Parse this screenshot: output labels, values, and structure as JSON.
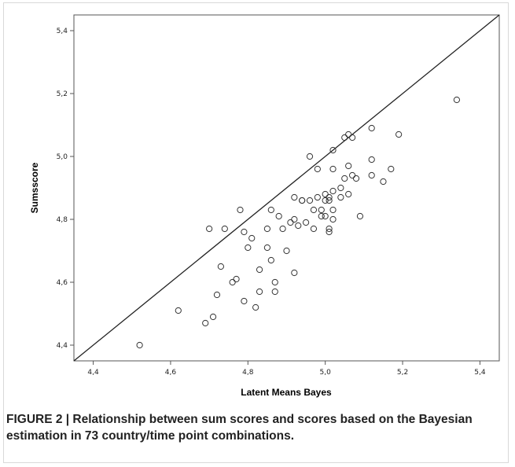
{
  "caption": "FIGURE 2 | Relationship between sum scores and scores based on the Bayesian estimation in 73 country/time point combinations.",
  "chart_data": {
    "type": "scatter",
    "title": "",
    "xlabel": "Latent Means Bayes",
    "ylabel": "Sumsscore",
    "xlim": [
      4.35,
      5.45
    ],
    "ylim": [
      4.35,
      5.45
    ],
    "xticks": [
      "4,4",
      "4,6",
      "4,8",
      "5,0",
      "5,2",
      "5,4"
    ],
    "yticks": [
      "4,4",
      "4,6",
      "4,8",
      "5,0",
      "5,2",
      "5,4"
    ],
    "tick_values": [
      4.4,
      4.6,
      4.8,
      5.0,
      5.2,
      5.4
    ],
    "grid": false,
    "reference_line": "y = x",
    "marker": "open circle",
    "colors": {
      "marker": "#333333",
      "line": "#222222",
      "frame": "#555555"
    },
    "points": [
      [
        4.52,
        4.4
      ],
      [
        4.62,
        4.51
      ],
      [
        4.69,
        4.47
      ],
      [
        4.71,
        4.49
      ],
      [
        4.72,
        4.56
      ],
      [
        4.73,
        4.65
      ],
      [
        4.7,
        4.77
      ],
      [
        4.74,
        4.77
      ],
      [
        4.76,
        4.6
      ],
      [
        4.77,
        4.61
      ],
      [
        4.78,
        4.83
      ],
      [
        4.79,
        4.76
      ],
      [
        4.8,
        4.71
      ],
      [
        4.81,
        4.74
      ],
      [
        4.79,
        4.54
      ],
      [
        4.82,
        4.52
      ],
      [
        4.83,
        4.57
      ],
      [
        4.83,
        4.64
      ],
      [
        4.85,
        4.77
      ],
      [
        4.85,
        4.71
      ],
      [
        4.86,
        4.67
      ],
      [
        4.86,
        4.83
      ],
      [
        4.87,
        4.6
      ],
      [
        4.87,
        4.57
      ],
      [
        4.88,
        4.81
      ],
      [
        4.89,
        4.77
      ],
      [
        4.9,
        4.7
      ],
      [
        4.91,
        4.79
      ],
      [
        4.92,
        4.63
      ],
      [
        4.92,
        4.8
      ],
      [
        4.92,
        4.87
      ],
      [
        4.93,
        4.78
      ],
      [
        4.94,
        4.86
      ],
      [
        4.95,
        4.79
      ],
      [
        4.96,
        5.0
      ],
      [
        4.96,
        4.86
      ],
      [
        4.97,
        4.77
      ],
      [
        4.97,
        4.83
      ],
      [
        4.98,
        4.87
      ],
      [
        4.98,
        4.96
      ],
      [
        4.99,
        4.81
      ],
      [
        4.99,
        4.83
      ],
      [
        5.0,
        4.88
      ],
      [
        5.0,
        4.81
      ],
      [
        5.01,
        4.86
      ],
      [
        5.01,
        4.87
      ],
      [
        5.01,
        4.76
      ],
      [
        5.02,
        4.83
      ],
      [
        5.02,
        4.8
      ],
      [
        5.02,
        4.89
      ],
      [
        5.02,
        4.96
      ],
      [
        5.02,
        5.02
      ],
      [
        5.04,
        4.87
      ],
      [
        5.04,
        4.9
      ],
      [
        5.05,
        4.93
      ],
      [
        5.05,
        5.06
      ],
      [
        5.06,
        4.88
      ],
      [
        5.06,
        5.07
      ],
      [
        5.06,
        4.97
      ],
      [
        5.07,
        4.94
      ],
      [
        5.07,
        5.06
      ],
      [
        5.08,
        4.93
      ],
      [
        5.09,
        4.81
      ],
      [
        5.12,
        4.94
      ],
      [
        5.12,
        4.99
      ],
      [
        5.12,
        5.09
      ],
      [
        5.15,
        4.92
      ],
      [
        5.17,
        4.96
      ],
      [
        5.19,
        5.07
      ],
      [
        5.34,
        5.18
      ],
      [
        5.01,
        4.77
      ],
      [
        4.94,
        4.86
      ],
      [
        5.0,
        4.86
      ]
    ]
  }
}
